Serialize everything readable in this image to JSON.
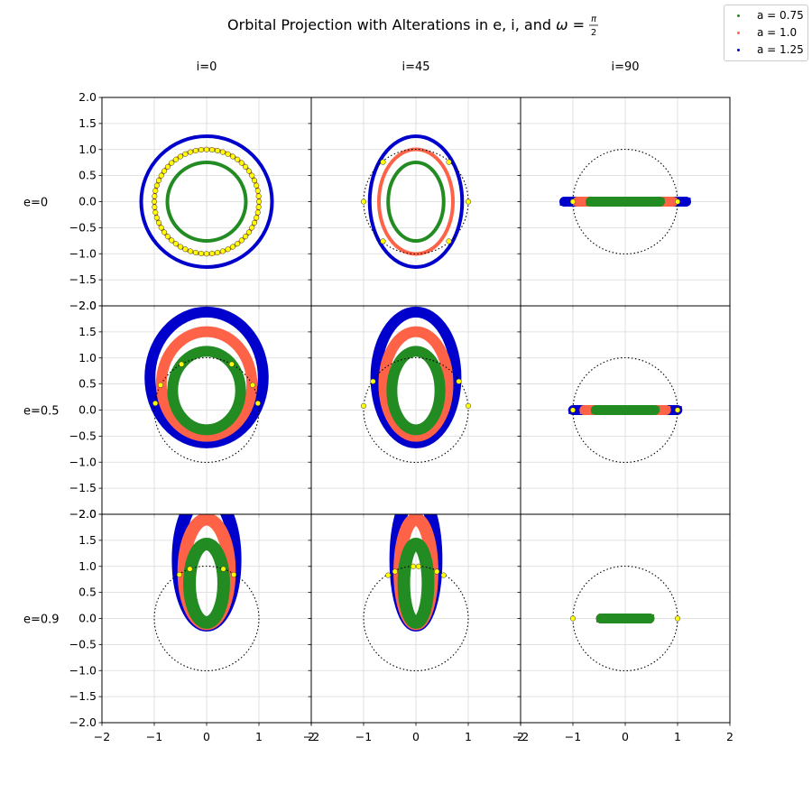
{
  "figure": {
    "title_prefix": "Orbital Projection with Alterations in e, i, and ",
    "title_omega": "ω = ",
    "title_frac_num": "π",
    "title_frac_den": "2"
  },
  "legend": {
    "entries": [
      {
        "label": "a = 0.75",
        "color": "#228b22"
      },
      {
        "label": "a = 1.0",
        "color": "#ff6347"
      },
      {
        "label": "a = 1.25",
        "color": "#0000cd"
      }
    ]
  },
  "chart_data": {
    "type": "scatter",
    "grid": true,
    "legend_position": "top-right",
    "columns": [
      "i=0",
      "i=45",
      "i=90"
    ],
    "rows": [
      "e=0",
      "e=0.5",
      "e=0.9"
    ],
    "inclinations_deg": [
      0,
      45,
      90
    ],
    "eccentricities": [
      0,
      0.5,
      0.9
    ],
    "omega": "π/2",
    "xlim": [
      -2,
      2
    ],
    "ylim": [
      -2,
      2
    ],
    "xticks": [
      "−2",
      "−1",
      "0",
      "1",
      "2"
    ],
    "yticks": [
      "−2.0",
      "−1.5",
      "−1.0",
      "−0.5",
      "0.0",
      "0.5",
      "1.0",
      "1.5",
      "2.0"
    ],
    "reference_circle_radius": 1,
    "series": [
      {
        "name": "a = 0.75",
        "a": 0.75,
        "color": "#228b22"
      },
      {
        "name": "a = 1.0",
        "a": 1.0,
        "color": "#ff6347"
      },
      {
        "name": "a = 1.25",
        "a": 1.25,
        "color": "#0000cd"
      }
    ],
    "marker_color": "#ffff00",
    "circle_color": "#000000"
  }
}
